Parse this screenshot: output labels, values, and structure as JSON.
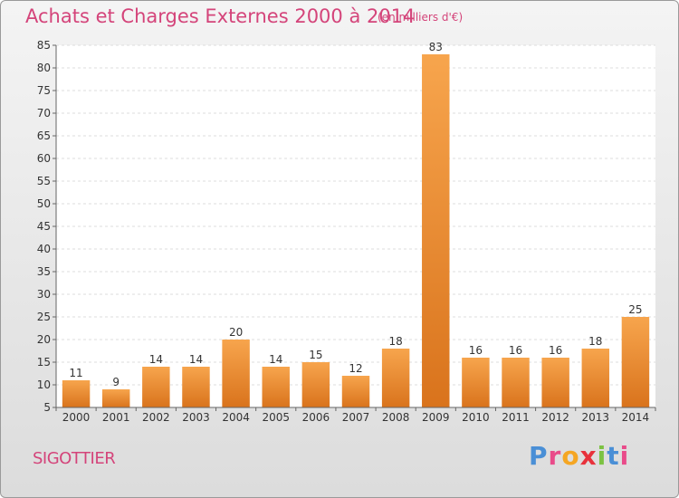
{
  "header": {
    "title": "Achats et Charges Externes 2000 à 2014",
    "subtitle": "(en milliers d'€)"
  },
  "footer": {
    "city": "SIGOTTIER",
    "logo_letters": [
      "P",
      "r",
      "o",
      "x",
      "i",
      "t",
      "i"
    ]
  },
  "colors": {
    "title": "#d4447a",
    "bar_top": "#f7a54d",
    "bar_bottom": "#d9731c",
    "logo": [
      "#4a8fd6",
      "#e94b8a",
      "#f5a623",
      "#e8323c",
      "#7cc242",
      "#4a8fd6",
      "#e94b8a"
    ]
  },
  "chart_data": {
    "type": "bar",
    "categories": [
      "2000",
      "2001",
      "2002",
      "2003",
      "2004",
      "2005",
      "2006",
      "2007",
      "2008",
      "2009",
      "2010",
      "2011",
      "2012",
      "2013",
      "2014"
    ],
    "values": [
      11,
      9,
      14,
      14,
      20,
      14,
      15,
      12,
      18,
      83,
      16,
      16,
      16,
      18,
      25
    ],
    "ylim": [
      5,
      85
    ],
    "yticks": [
      5,
      10,
      15,
      20,
      25,
      30,
      35,
      40,
      45,
      50,
      55,
      60,
      65,
      70,
      75,
      80,
      85
    ],
    "grid": true,
    "xlabel": "",
    "ylabel": ""
  }
}
